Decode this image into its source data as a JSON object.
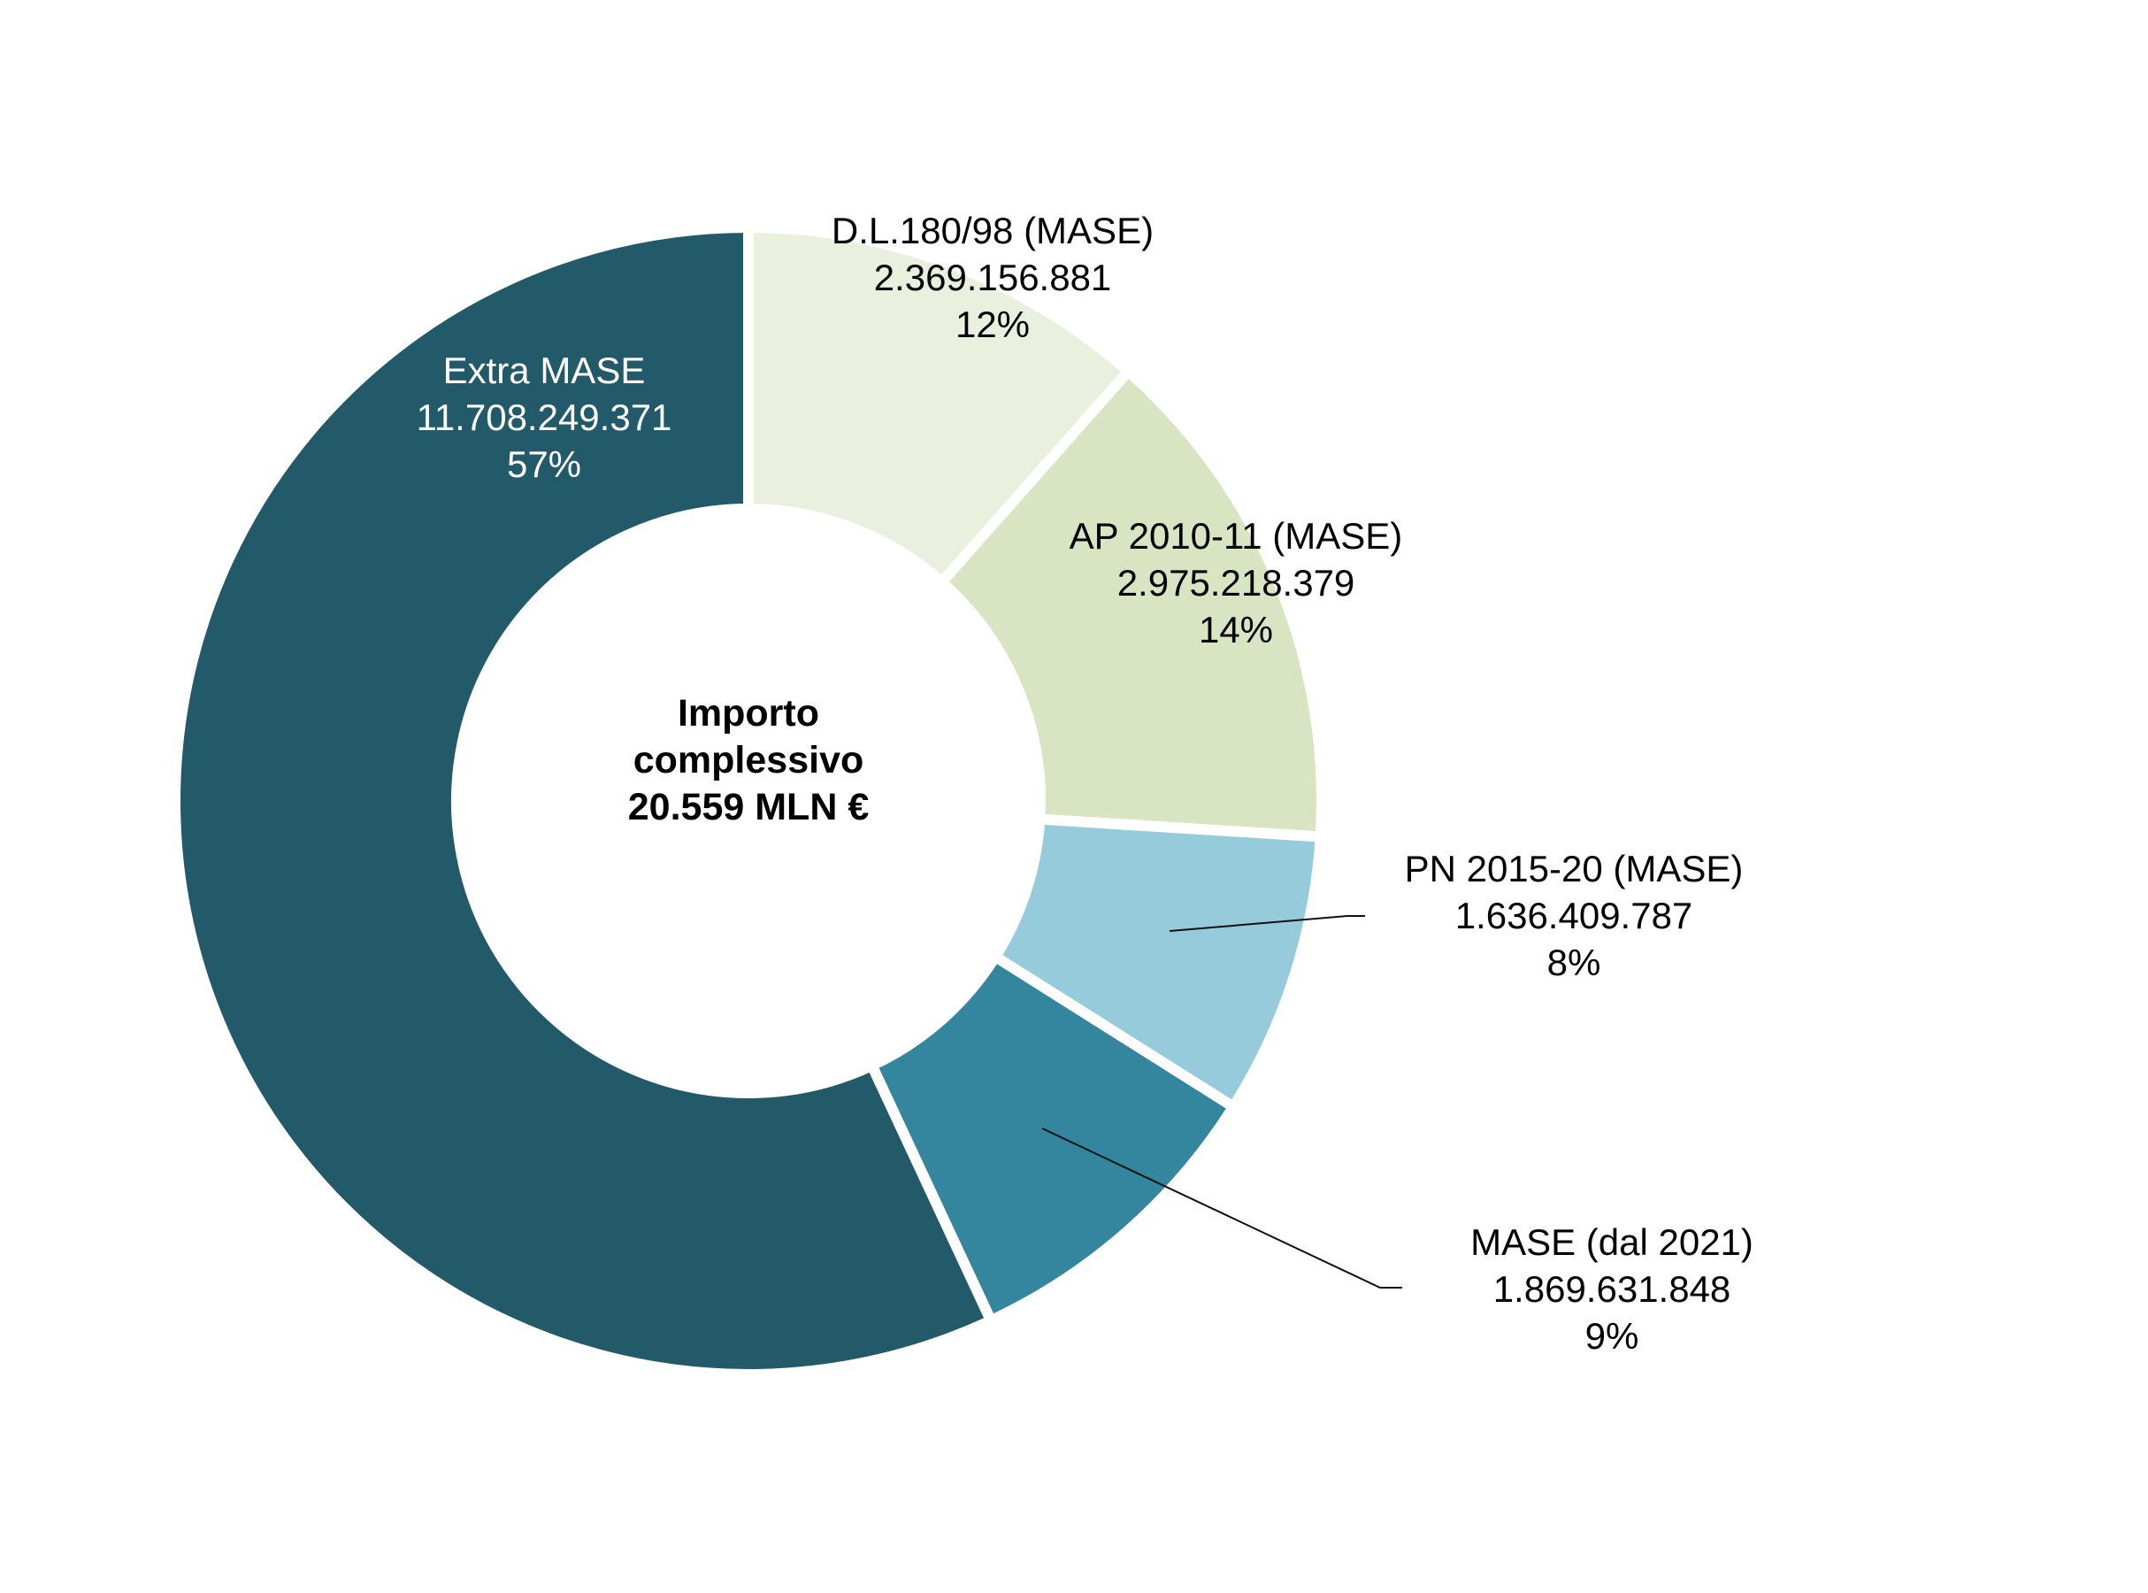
{
  "chart_data": {
    "type": "pie",
    "variant": "donut",
    "center_label": [
      "Importo",
      "complessivo",
      "20.559 MLN €"
    ],
    "slices": [
      {
        "name": "D.L.180/98 (MASE)",
        "value_text": "2.369.156.881",
        "value": 2369156881,
        "percent_text": "12%",
        "color": "#EAF0DE",
        "label_color": "#000000"
      },
      {
        "name": "AP 2010-11 (MASE)",
        "value_text": "2.975.218.379",
        "value": 2975218379,
        "percent_text": "14%",
        "color": "#D9E4C2",
        "label_color": "#000000"
      },
      {
        "name": "PN 2015-20 (MASE)",
        "value_text": "1.636.409.787",
        "value": 1636409787,
        "percent_text": "8%",
        "color": "#96CBDB",
        "label_color": "#000000"
      },
      {
        "name": "MASE (dal 2021)",
        "value_text": "1.869.631.848",
        "value": 1869631848,
        "percent_text": "9%",
        "color": "#33869D",
        "label_color": "#000000"
      },
      {
        "name": "Extra MASE",
        "value_text": "11.708.249.371",
        "value": 11708249371,
        "percent_text": "57%",
        "color": "#235A69",
        "label_color": "#FFFFFF"
      }
    ]
  }
}
